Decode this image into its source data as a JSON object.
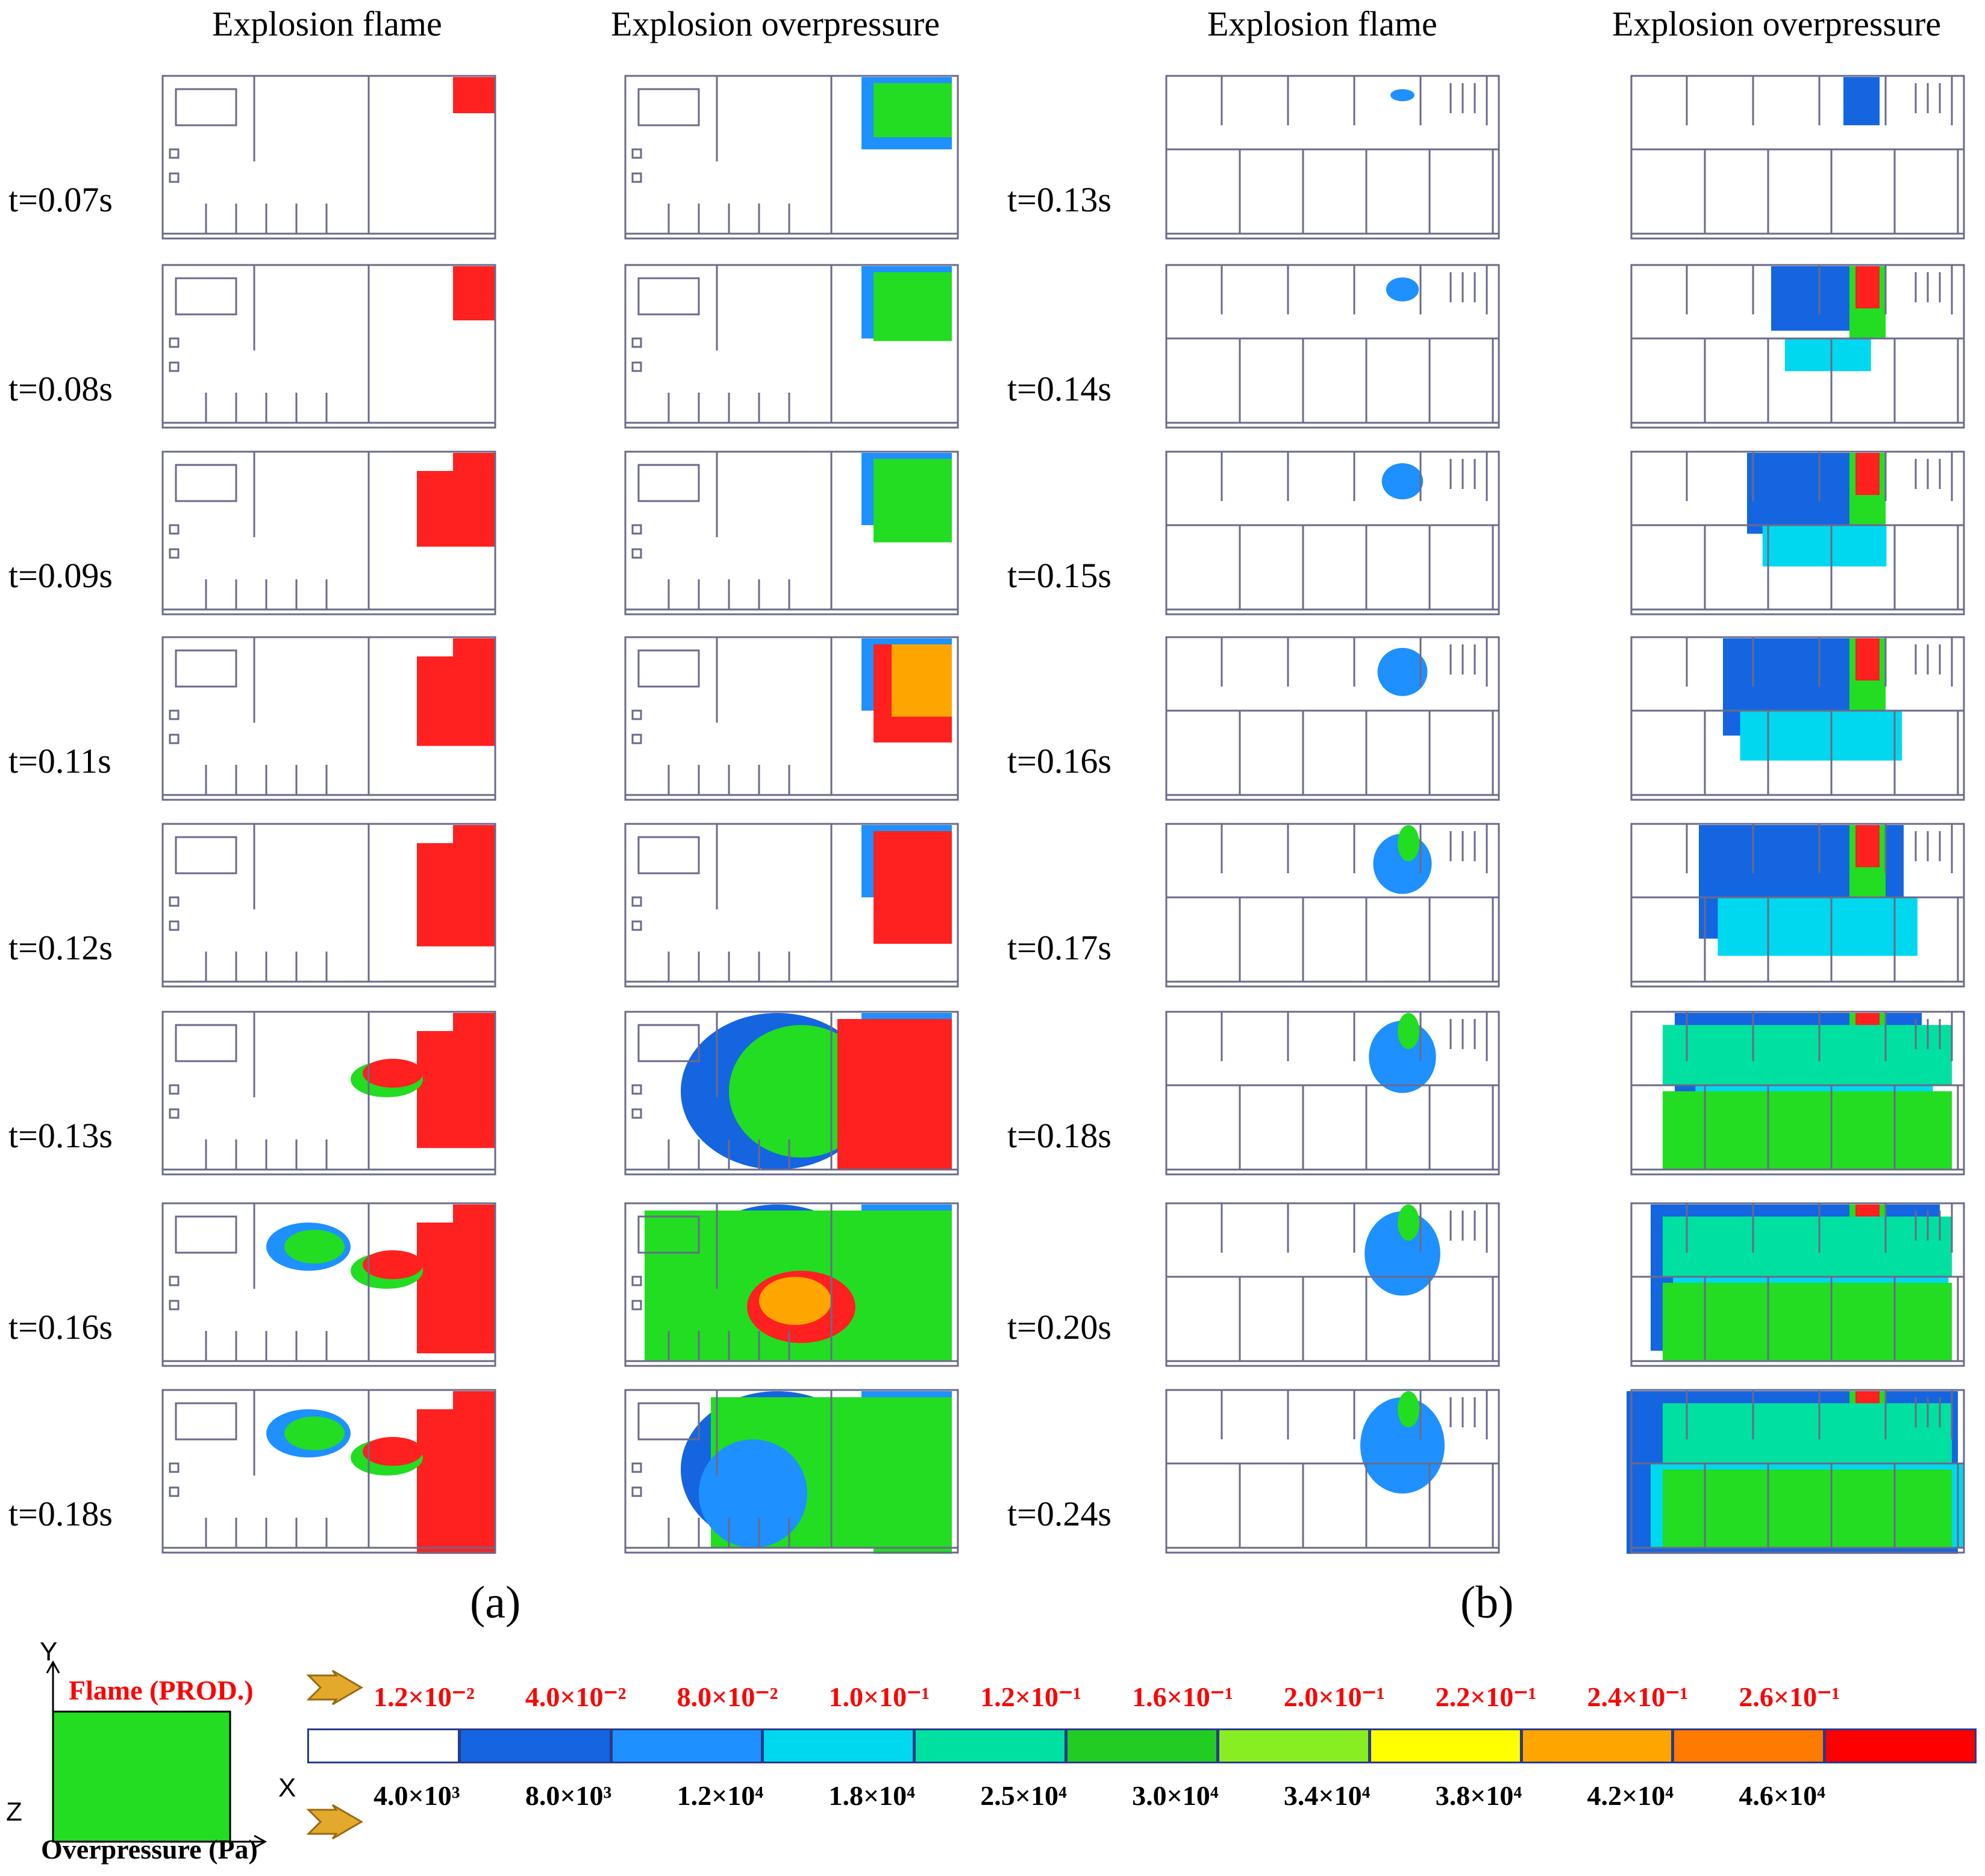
{
  "headers": {
    "a_flame": "Explosion flame",
    "a_overpressure": "Explosion overpressure",
    "b_flame": "Explosion flame",
    "b_overpressure": "Explosion overpressure"
  },
  "group_a": {
    "label": "(a)",
    "times": [
      "t=0.07s",
      "t=0.08s",
      "t=0.09s",
      "t=0.11s",
      "t=0.12s",
      "t=0.13s",
      "t=0.16s",
      "t=0.18s"
    ]
  },
  "group_b": {
    "label": "(b)",
    "times": [
      "t=0.13s",
      "t=0.14s",
      "t=0.15s",
      "t=0.16s",
      "t=0.17s",
      "t=0.18s",
      "t=0.20s",
      "t=0.24s"
    ]
  },
  "legend": {
    "axis_y": "Y",
    "axis_x": "X",
    "axis_z": "Z",
    "flame_label": "Flame (PROD.)",
    "overpressure_label": "Overpressure (Pa)",
    "flame_values": [
      "1.2×10⁻²",
      "4.0×10⁻²",
      "8.0×10⁻²",
      "1.0×10⁻¹",
      "1.2×10⁻¹",
      "1.6×10⁻¹",
      "2.0×10⁻¹",
      "2.2×10⁻¹",
      "2.4×10⁻¹",
      "2.6×10⁻¹"
    ],
    "overpressure_values": [
      "4.0×10³",
      "8.0×10³",
      "1.2×10⁴",
      "1.8×10⁴",
      "2.5×10⁴",
      "3.0×10⁴",
      "3.4×10⁴",
      "3.8×10⁴",
      "4.2×10⁴",
      "4.6×10⁴"
    ],
    "colors": [
      "#ffffff",
      "#1565e0",
      "#1e90ff",
      "#00d8f0",
      "#00e0a0",
      "#22cc22",
      "#88ee22",
      "#ffff00",
      "#ffa500",
      "#ff7a00",
      "#ff0000"
    ]
  }
}
